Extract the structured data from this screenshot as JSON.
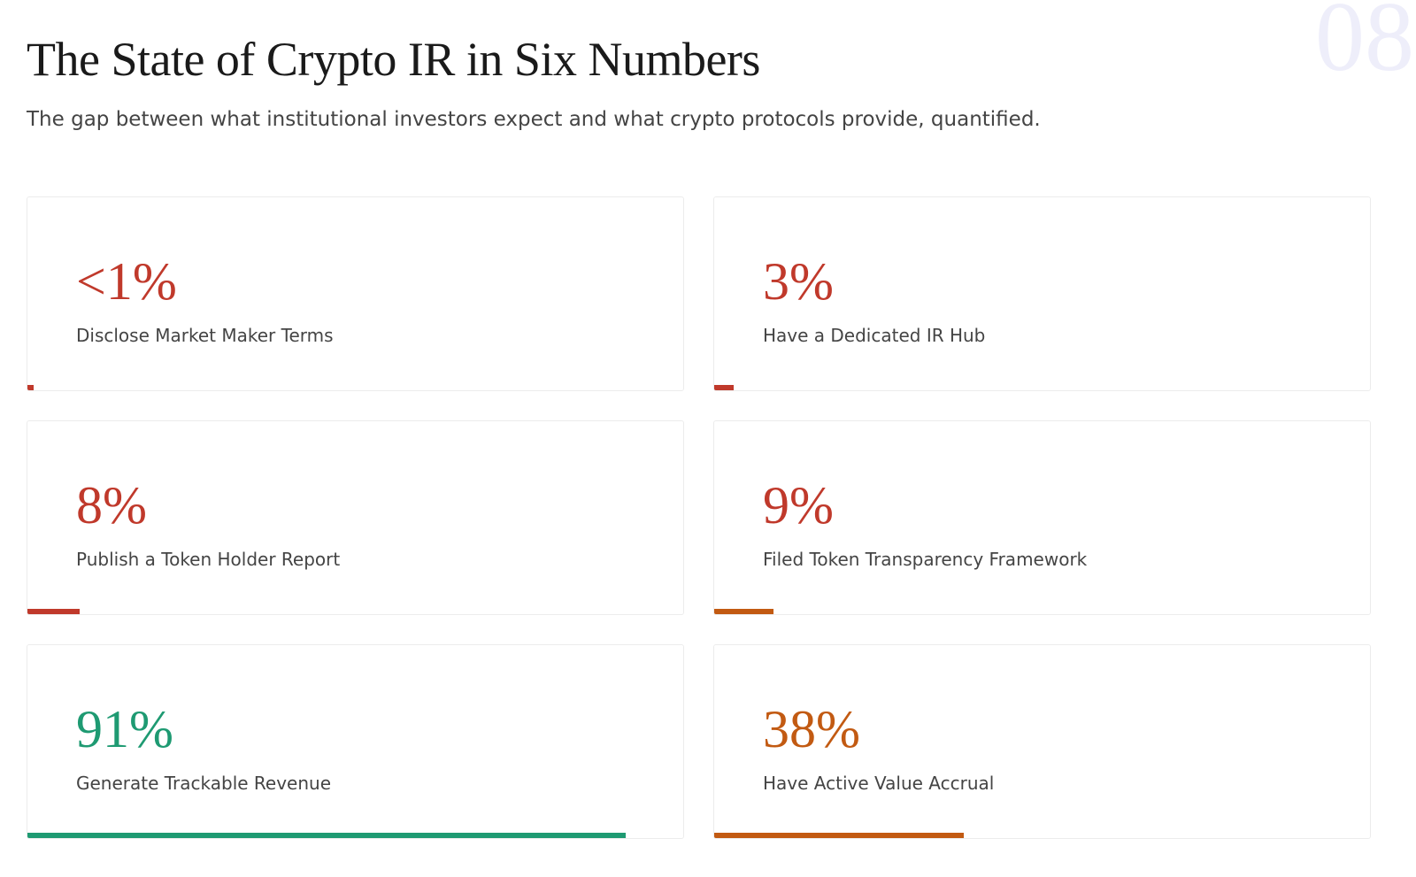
{
  "page_number": "08",
  "header": {
    "title": "The State of Crypto IR in Six Numbers",
    "subtitle": "The gap between what institutional investors expect and what crypto protocols provide, quantified."
  },
  "xlim": [
    0,
    100
  ],
  "cards": [
    {
      "value": 1,
      "value_label": "<1%",
      "label": "Disclose Market Maker Terms",
      "color": "#c0392b",
      "bar_color": "#c0392b"
    },
    {
      "value": 3,
      "value_label": "3%",
      "label": "Have a Dedicated IR Hub",
      "color": "#c0392b",
      "bar_color": "#c0392b"
    },
    {
      "value": 8,
      "value_label": "8%",
      "label": "Publish a Token Holder Report",
      "color": "#c0392b",
      "bar_color": "#c0392b"
    },
    {
      "value": 9,
      "value_label": "9%",
      "label": "Filed Token Transparency Framework",
      "color": "#c0392b",
      "bar_color": "#c25a12"
    },
    {
      "value": 91,
      "value_label": "91%",
      "label": "Generate Trackable Revenue",
      "color": "#1e9a72",
      "bar_color": "#1e9a72"
    },
    {
      "value": 38,
      "value_label": "38%",
      "label": "Have Active Value Accrual",
      "color": "#c25a12",
      "bar_color": "#c25a12"
    }
  ]
}
